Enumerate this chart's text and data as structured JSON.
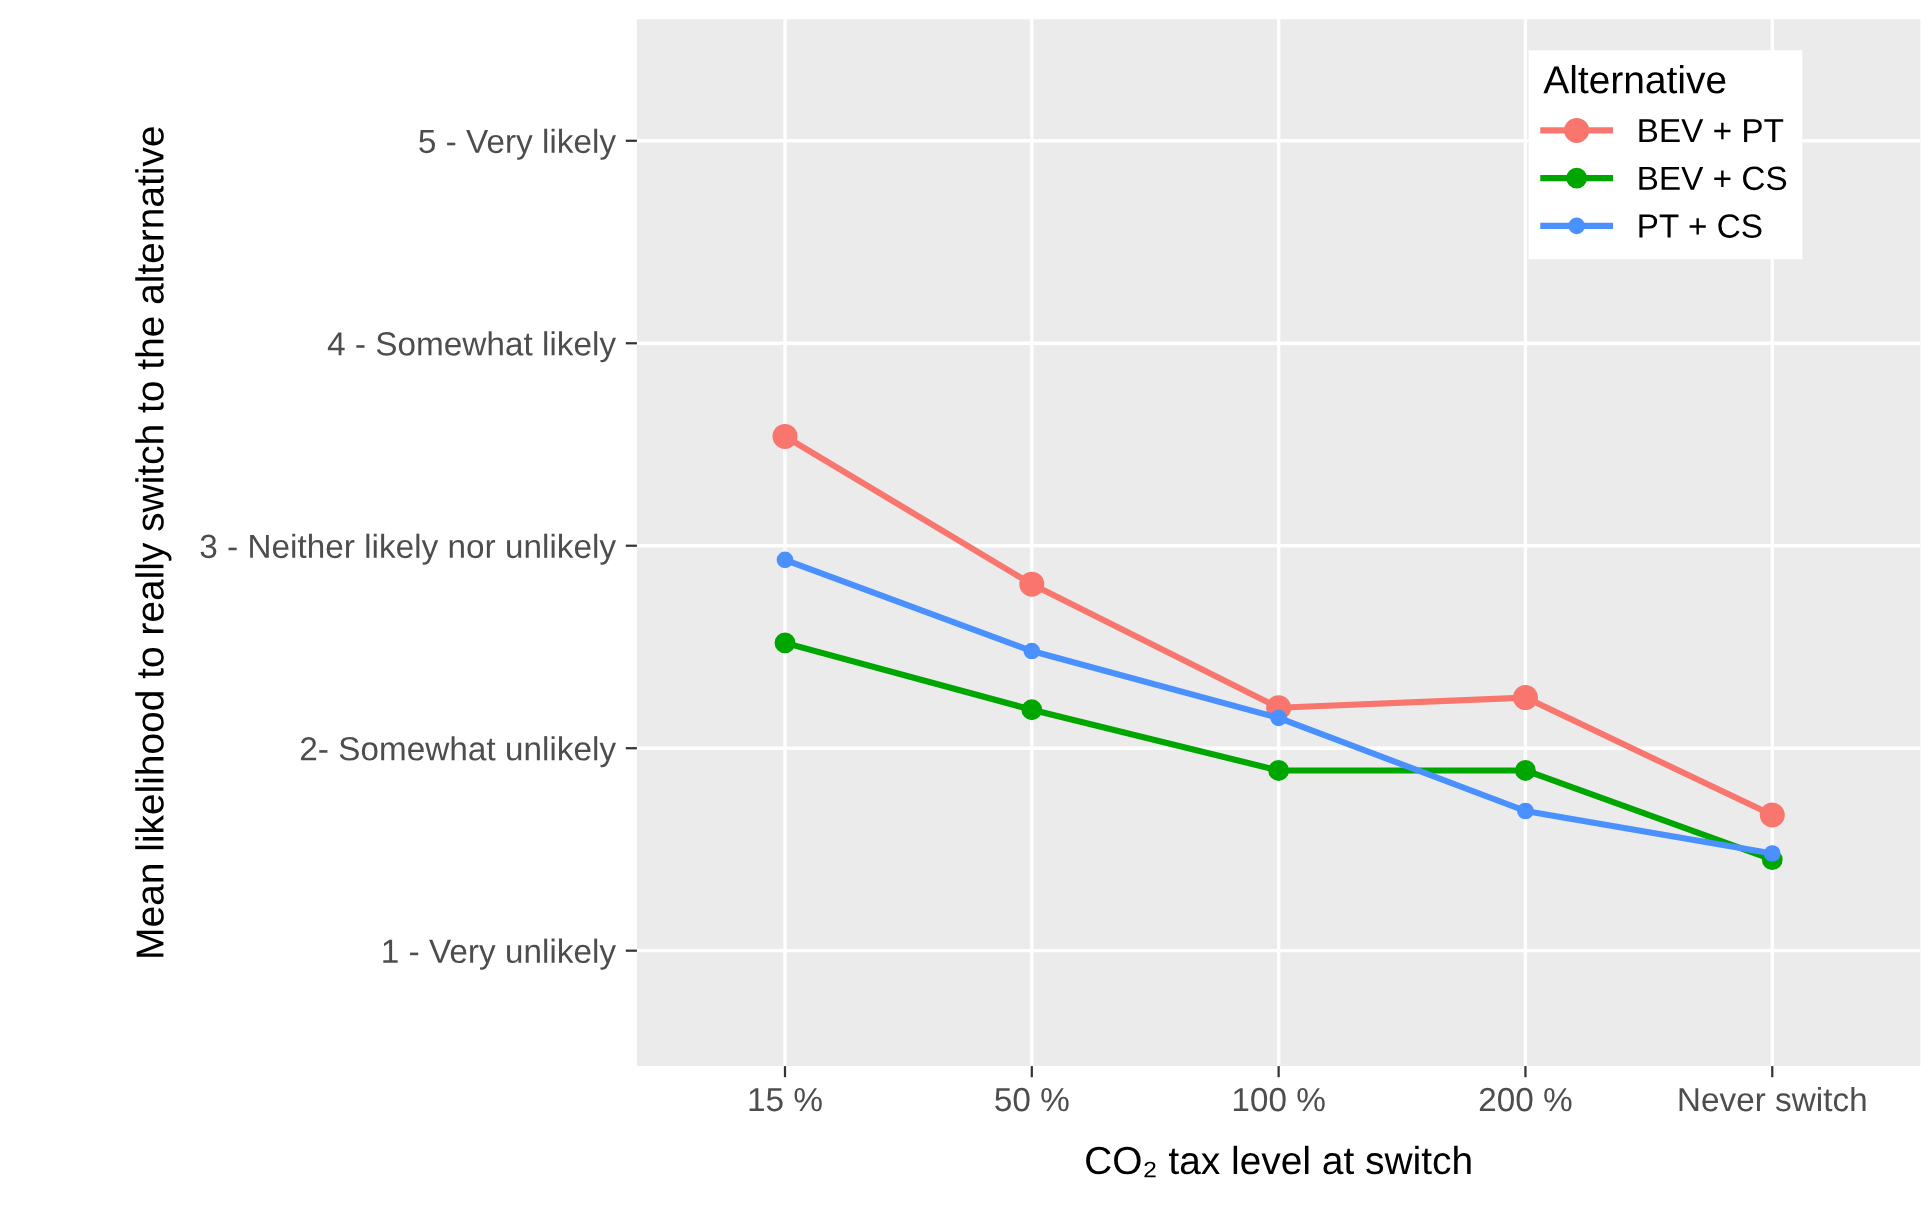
{
  "chart_data": {
    "type": "line",
    "xlabel": "CO₂ tax level at switch",
    "ylabel": "Mean likelihood to really switch to the alternative",
    "legend_title": "Alternative",
    "categories": [
      "15 %",
      "50 %",
      "100 %",
      "200 %",
      "Never switch"
    ],
    "series": [
      {
        "name": "BEV + PT",
        "color": "#f8766d",
        "values": [
          3.54,
          2.81,
          2.2,
          2.25,
          1.67
        ]
      },
      {
        "name": "BEV + CS",
        "color": "#00a600",
        "values": [
          2.52,
          2.19,
          1.89,
          1.89,
          1.45
        ]
      },
      {
        "name": "PT + CS",
        "color": "#4a90ff",
        "values": [
          2.93,
          2.48,
          2.15,
          1.69,
          1.48
        ]
      }
    ],
    "ylim": [
      0.43,
      5.6
    ],
    "yticks": [
      {
        "value": 1,
        "label": "1 - Very unlikely"
      },
      {
        "value": 2,
        "label": "2- Somewhat unlikely"
      },
      {
        "value": 3,
        "label": "3 - Neither likely nor unlikely"
      },
      {
        "value": 4,
        "label": "4 - Somewhat likely"
      },
      {
        "value": 5,
        "label": "5 - Very likely"
      }
    ],
    "grid": true,
    "legend": "top right",
    "marker": "circle",
    "line_style": "solid"
  }
}
